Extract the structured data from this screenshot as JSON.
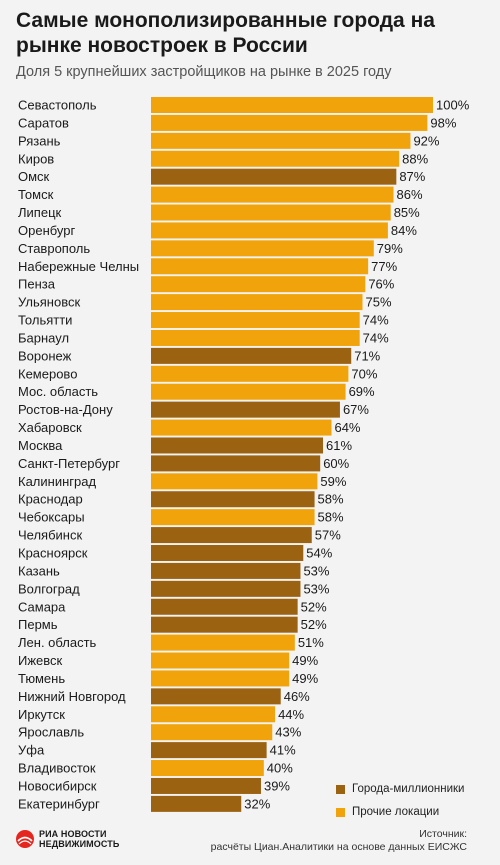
{
  "header": {
    "title": "Самые монополизированные города на рынке новостроек в России",
    "subtitle": "Доля 5 крупнейших застройщиков на рынке в 2025 году"
  },
  "colors": {
    "million": "#9b6212",
    "other": "#f0a30a"
  },
  "legend": {
    "million_label": "Города-миллионники",
    "other_label": "Прочие локации"
  },
  "footer": {
    "logo_line1": "РИА НОВОСТИ",
    "logo_line2": "НЕДВИЖИМОСТЬ",
    "source_label": "Источник:",
    "source_text": "расчёты Циан.Аналитики на основе данных ЕИСЖС"
  },
  "chart_data": {
    "type": "bar",
    "orientation": "horizontal",
    "unit": "%",
    "xlim": [
      0,
      100
    ],
    "categories": [
      "Севастополь",
      "Саратов",
      "Рязань",
      "Киров",
      "Омск",
      "Томск",
      "Липецк",
      "Оренбург",
      "Ставрополь",
      "Набережные Челны",
      "Пенза",
      "Ульяновск",
      "Тольятти",
      "Барнаул",
      "Воронеж",
      "Кемерово",
      "Мос. область",
      "Ростов-на-Дону",
      "Хабаровск",
      "Москва",
      "Санкт-Петербург",
      "Калининград",
      "Краснодар",
      "Чебоксары",
      "Челябинск",
      "Красноярск",
      "Казань",
      "Волгоград",
      "Самара",
      "Пермь",
      "Лен. область",
      "Ижевск",
      "Тюмень",
      "Нижний Новгород",
      "Иркутск",
      "Ярославль",
      "Уфа",
      "Владивосток",
      "Новосибирск",
      "Екатеринбург"
    ],
    "values": [
      100,
      98,
      92,
      88,
      87,
      86,
      85,
      84,
      79,
      77,
      76,
      75,
      74,
      74,
      71,
      70,
      69,
      67,
      64,
      61,
      60,
      59,
      58,
      58,
      57,
      54,
      53,
      53,
      52,
      52,
      51,
      49,
      49,
      46,
      44,
      43,
      41,
      40,
      39,
      32
    ],
    "groups": [
      "other",
      "other",
      "other",
      "other",
      "million",
      "other",
      "other",
      "other",
      "other",
      "other",
      "other",
      "other",
      "other",
      "other",
      "million",
      "other",
      "other",
      "million",
      "other",
      "million",
      "million",
      "other",
      "million",
      "other",
      "million",
      "million",
      "million",
      "million",
      "million",
      "million",
      "other",
      "other",
      "other",
      "million",
      "other",
      "other",
      "million",
      "other",
      "million",
      "million"
    ]
  }
}
